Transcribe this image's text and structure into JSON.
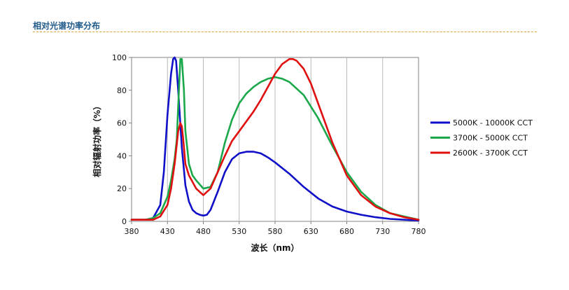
{
  "header": {
    "title": "相对光谱功率分布"
  },
  "chart_data": {
    "type": "line",
    "xlabel": "波长（nm）",
    "ylabel": "相对辐射功率（%）",
    "xlim": [
      380,
      780
    ],
    "ylim": [
      0,
      100
    ],
    "xticks": [
      380,
      430,
      480,
      530,
      580,
      630,
      680,
      730,
      780
    ],
    "yticks": [
      0,
      20,
      40,
      60,
      80,
      100
    ],
    "grid": "vertical",
    "legend_position": "right",
    "series": [
      {
        "name": "5000K - 10000K CCT",
        "color": "#1010c8",
        "x": [
          380,
          400,
          410,
          420,
          425,
          430,
          435,
          438,
          440,
          442,
          445,
          450,
          455,
          460,
          465,
          470,
          475,
          480,
          485,
          490,
          500,
          510,
          520,
          530,
          540,
          550,
          560,
          570,
          580,
          600,
          620,
          640,
          660,
          680,
          700,
          720,
          740,
          760,
          780
        ],
        "y": [
          1,
          1,
          2,
          10,
          30,
          65,
          90,
          99,
          100,
          98,
          80,
          45,
          22,
          12,
          7,
          5,
          4,
          3.5,
          4,
          7,
          18,
          30,
          38,
          41.5,
          42.5,
          42.5,
          41.5,
          39,
          36,
          29,
          21,
          14,
          9,
          6,
          4,
          2.5,
          1.5,
          1,
          0.5
        ]
      },
      {
        "name": "3700K - 5000K CCT",
        "color": "#1aa84a",
        "x": [
          380,
          400,
          410,
          420,
          430,
          435,
          440,
          443,
          445,
          448,
          450,
          453,
          455,
          460,
          465,
          470,
          480,
          490,
          500,
          510,
          520,
          530,
          540,
          550,
          560,
          570,
          580,
          590,
          600,
          620,
          640,
          660,
          680,
          700,
          720,
          740,
          760,
          780
        ],
        "y": [
          1,
          1,
          2,
          5,
          15,
          25,
          38,
          50,
          70,
          99,
          99,
          80,
          55,
          35,
          28,
          25,
          20,
          21,
          30,
          48,
          62,
          72,
          78,
          82,
          85,
          87,
          88,
          87,
          85,
          77,
          63,
          46,
          30,
          18,
          10,
          5,
          3,
          1
        ]
      },
      {
        "name": "2600K - 3700K CCT",
        "color": "#e01010",
        "x": [
          380,
          400,
          410,
          420,
          430,
          435,
          440,
          445,
          448,
          450,
          452,
          455,
          460,
          465,
          470,
          475,
          480,
          490,
          500,
          510,
          520,
          530,
          540,
          550,
          560,
          570,
          580,
          590,
          600,
          605,
          610,
          620,
          630,
          640,
          660,
          680,
          700,
          720,
          740,
          760,
          780
        ],
        "y": [
          1,
          1,
          1,
          3,
          10,
          20,
          35,
          55,
          60,
          58,
          50,
          35,
          28,
          24,
          20,
          18,
          16,
          20,
          30,
          40,
          49,
          55,
          61,
          67,
          74,
          82,
          90,
          96,
          99,
          99,
          98,
          93,
          84,
          72,
          48,
          28,
          16,
          9,
          5,
          2.5,
          1
        ]
      }
    ]
  }
}
